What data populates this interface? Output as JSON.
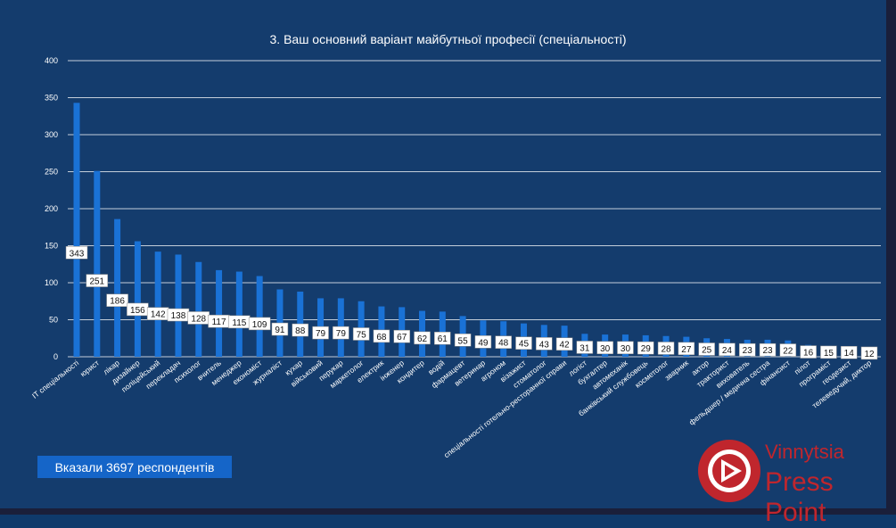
{
  "title": "3. Ваш основний варіант майбутньої професії (спеціальності)",
  "respondents_label": "Вказали 3697 респондентів",
  "watermark": {
    "line1": "Vinnytsia",
    "line2": "Press Point"
  },
  "colors": {
    "background": "#143c6d",
    "bar": "#1a72d6",
    "grid": "#ffffff",
    "label_box": "#ffffff",
    "logo": "#c0262d"
  },
  "chart_data": {
    "type": "bar",
    "title": "3. Ваш основний варіант майбутньої професії (спеціальності)",
    "ylim": [
      0,
      400
    ],
    "yticks": [
      "0",
      "50",
      "100",
      "150",
      "200",
      "250",
      "300",
      "350",
      "400"
    ],
    "grid": true,
    "categories": [
      "IT спеціальності",
      "юрист",
      "лікар",
      "дизайнер",
      "поліцейський",
      "перекладач",
      "психолог",
      "вчитель",
      "менеджер",
      "економіст",
      "журналіст",
      "кухар",
      "військовий",
      "перукар",
      "маркетолог",
      "електрик",
      "інженер",
      "кондитер",
      "водій",
      "фармацевт",
      "ветеринар",
      "агроном",
      "візажист",
      "стоматолог",
      "спеціальності готельно-ресторанної справи",
      "логіст",
      "бухгалтер",
      "автомеханік",
      "банківський службовець",
      "косметолог",
      "зварник",
      "актор",
      "тракторист",
      "вихователь",
      "фельдшер / медична сестра",
      "фінансист",
      "пілот",
      "програміст",
      "геодезист",
      "телеведучий, диктор"
    ],
    "values": [
      343,
      251,
      186,
      156,
      142,
      138,
      128,
      117,
      115,
      109,
      91,
      88,
      79,
      79,
      75,
      68,
      67,
      62,
      61,
      55,
      49,
      48,
      45,
      43,
      42,
      31,
      30,
      30,
      29,
      28,
      27,
      25,
      24,
      23,
      23,
      22,
      16,
      15,
      14,
      12
    ],
    "data_labels": [
      "343",
      "251",
      "186",
      "156",
      "142",
      "138",
      "128",
      "117",
      "115",
      "109",
      "91",
      "88",
      "79",
      "79",
      "75",
      "68",
      "67",
      "62",
      "61",
      "55",
      "49",
      "48",
      "45",
      "43",
      "42",
      "31",
      "30",
      "30",
      "29",
      "28",
      "27",
      "25",
      "24",
      "23",
      "23",
      "22",
      "16",
      "15",
      "14",
      "12"
    ]
  }
}
